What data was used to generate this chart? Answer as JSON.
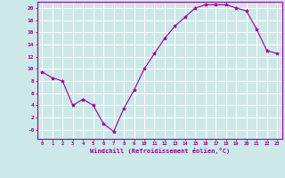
{
  "x": [
    0,
    1,
    2,
    3,
    4,
    5,
    6,
    7,
    8,
    9,
    10,
    11,
    12,
    13,
    14,
    15,
    16,
    17,
    18,
    19,
    20,
    21,
    22,
    23
  ],
  "y": [
    9.5,
    8.5,
    8.0,
    4.0,
    5.0,
    4.0,
    1.0,
    -0.3,
    3.5,
    6.5,
    10.0,
    12.5,
    15.0,
    17.0,
    18.5,
    20.0,
    20.5,
    20.5,
    20.5,
    20.0,
    19.5,
    16.5,
    13.0,
    12.5
  ],
  "line_color": "#990099",
  "marker": "*",
  "marker_size": 3,
  "bg_color": "#cce8e8",
  "grid_color": "#ffffff",
  "xlabel": "Windchill (Refroidissement éolien,°C)",
  "xlabel_color": "#990099",
  "tick_color": "#990099",
  "xlim": [
    -0.5,
    23.5
  ],
  "ylim": [
    -1.5,
    21.0
  ],
  "ytick_vals": [
    0,
    2,
    4,
    6,
    8,
    10,
    12,
    14,
    16,
    18,
    20
  ],
  "ytick_labels": [
    "-0",
    "2",
    "4",
    "6",
    "8",
    "10",
    "12",
    "14",
    "16",
    "18",
    "20"
  ],
  "xtick_vals": [
    0,
    1,
    2,
    3,
    4,
    5,
    6,
    7,
    8,
    9,
    10,
    11,
    12,
    13,
    14,
    15,
    16,
    17,
    18,
    19,
    20,
    21,
    22,
    23
  ],
  "xtick_labels": [
    "0",
    "1",
    "2",
    "3",
    "4",
    "5",
    "6",
    "7",
    "8",
    "9",
    "10",
    "11",
    "12",
    "13",
    "14",
    "15",
    "16",
    "17",
    "18",
    "19",
    "20",
    "21",
    "22",
    "23"
  ]
}
